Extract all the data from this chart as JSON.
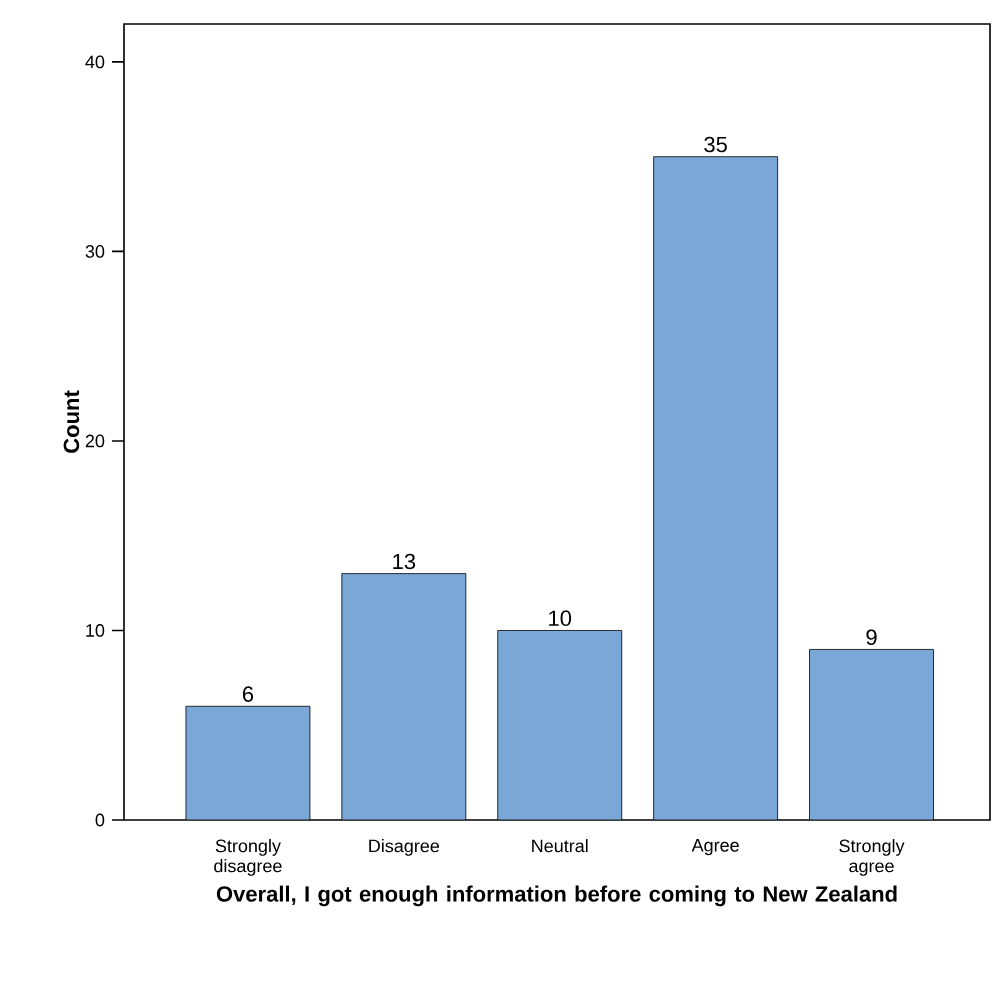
{
  "chart_data": {
    "type": "bar",
    "xlabel": "Overall, I got enough information before coming to New Zealand",
    "ylabel": "Count",
    "categories": [
      "Strongly disagree",
      "Disagree",
      "Neutral",
      "Agree",
      "Strongly agree"
    ],
    "values": [
      6,
      13,
      10,
      35,
      9
    ],
    "color": "#7ba7d7",
    "ylim": [
      0,
      42
    ],
    "yticks": [
      0,
      10,
      20,
      30,
      40
    ],
    "data_labels": true,
    "grid": false
  }
}
